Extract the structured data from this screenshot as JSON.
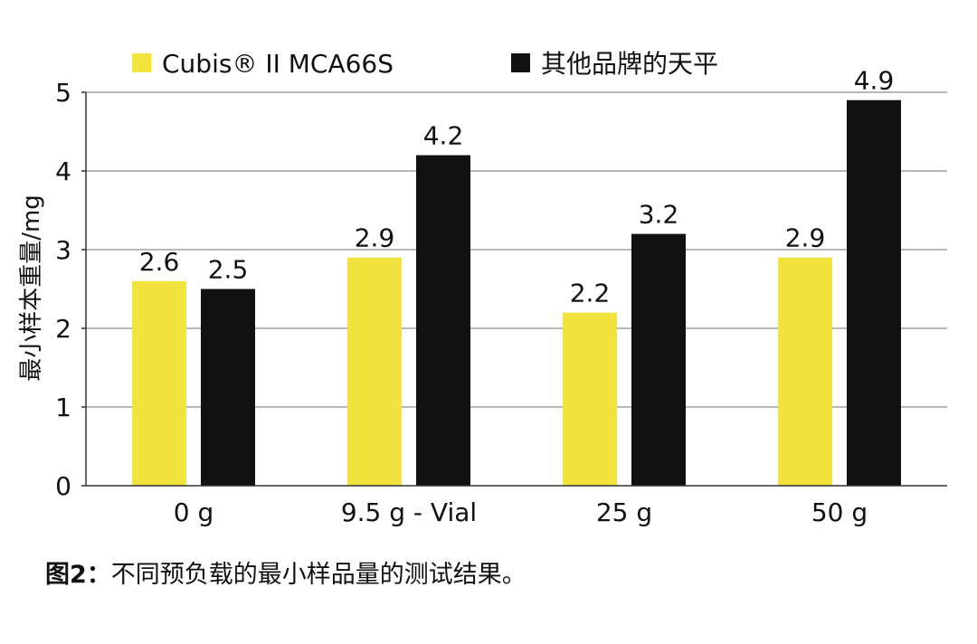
{
  "chart_data": {
    "type": "bar",
    "categories": [
      "0 g",
      "9.5 g - Vial",
      "25 g",
      "50 g"
    ],
    "series": [
      {
        "name": "Cubis® II MCA66S",
        "values": [
          2.6,
          2.9,
          2.2,
          2.9
        ],
        "color": "#f2e33e"
      },
      {
        "name": "其他品牌的天平",
        "values": [
          2.5,
          4.2,
          3.2,
          4.9
        ],
        "color": "#111111"
      }
    ],
    "ylabel": "最小样本重量/mg",
    "xlabel": "",
    "ylim": [
      0,
      5
    ],
    "yticks": [
      0,
      1,
      2,
      3,
      4,
      5
    ],
    "grid": true,
    "legend": "top"
  },
  "caption": {
    "prefix": "图2：",
    "text": "不同预负载的最小样品量的测试结果。"
  }
}
